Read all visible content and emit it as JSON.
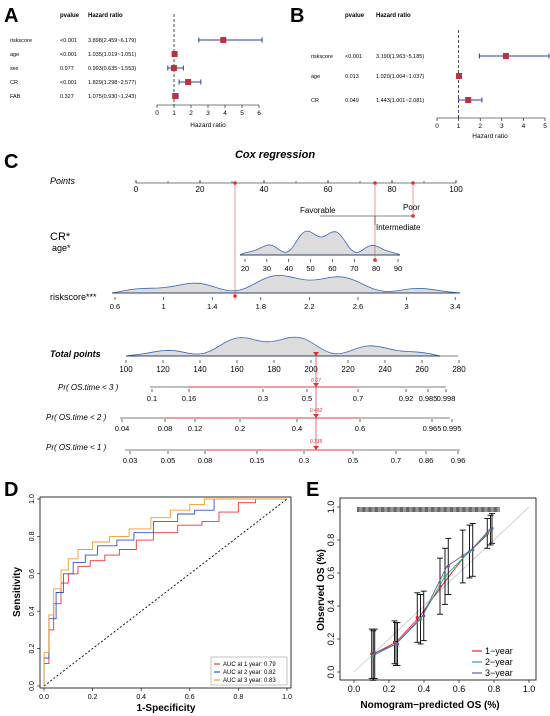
{
  "panels": {
    "A": {
      "letter": "A",
      "col_pvalue": "pvalue",
      "col_hr": "Hazard ratio",
      "xlabel": "Hazard ratio",
      "ticks": [
        0,
        1,
        2,
        3,
        4,
        5,
        6
      ],
      "rows": [
        {
          "name": "riskscore",
          "p": "<0.001",
          "hr_text": "3.898(2.459~6.179)",
          "hr": 3.898,
          "lo": 2.459,
          "hi": 6.179
        },
        {
          "name": "age",
          "p": "<0.001",
          "hr_text": "1.035(1.019~1.051)",
          "hr": 1.035,
          "lo": 1.019,
          "hi": 1.051
        },
        {
          "name": "sex",
          "p": "0.977",
          "hr_text": "0.993(0.635~1.553)",
          "hr": 0.993,
          "lo": 0.635,
          "hi": 1.553
        },
        {
          "name": "CR",
          "p": "<0.001",
          "hr_text": "1.829(1.298~2.577)",
          "hr": 1.829,
          "lo": 1.298,
          "hi": 2.577
        },
        {
          "name": "FAB",
          "p": "0.327",
          "hr_text": "1.075(0.930~1.243)",
          "hr": 1.075,
          "lo": 0.93,
          "hi": 1.243
        }
      ]
    },
    "B": {
      "letter": "B",
      "col_pvalue": "pvalue",
      "col_hr": "Hazard ratio",
      "xlabel": "Hazard ratio",
      "ticks": [
        0,
        1,
        2,
        3,
        4,
        5
      ],
      "rows": [
        {
          "name": "riskscore",
          "p": "<0.001",
          "hr_text": "3.190(1.963~5.185)",
          "hr": 3.19,
          "lo": 1.963,
          "hi": 5.185
        },
        {
          "name": "age",
          "p": "0.013",
          "hr_text": "1.020(1.004~1.037)",
          "hr": 1.02,
          "lo": 1.004,
          "hi": 1.037
        },
        {
          "name": "CR",
          "p": "0.049",
          "hr_text": "1.443(1.001~2.081)",
          "hr": 1.443,
          "lo": 1.001,
          "hi": 2.081
        }
      ]
    },
    "C": {
      "letter": "C",
      "title": "Cox regression",
      "points_label": "Points",
      "points_ticks": [
        0,
        20,
        40,
        60,
        80,
        100
      ],
      "cr_label": "CR*",
      "cr_levels": [
        "Favorable",
        "Poor",
        "Intermediate"
      ],
      "age_label": "age*",
      "age_ticks": [
        20,
        30,
        40,
        50,
        60,
        70,
        80,
        90
      ],
      "risk_label": "riskscore***",
      "risk_ticks": [
        "0.6",
        "1",
        "1.4",
        "1.8",
        "2.2",
        "2.6",
        "3",
        "3.4"
      ],
      "total_label": "Total points",
      "total_ticks": [
        100,
        120,
        140,
        160,
        180,
        200,
        220,
        240,
        260,
        280
      ],
      "total_value": "190",
      "pr3_label": "Pr( OS.time < 3 )",
      "pr3_ticks": [
        "0.1",
        "0.16",
        "0.3",
        "0.5",
        "0.7",
        "0.92",
        "0.985",
        "0.998"
      ],
      "pr3_value": "0.67",
      "pr2_label": "Pr( OS.time < 2 )",
      "pr2_ticks": [
        "0.04",
        "0.08",
        "0.12",
        "0.2",
        "0.4",
        "0.6",
        "0.965",
        "0.995"
      ],
      "pr2_value": "0.492",
      "pr1_label": "Pr( OS.time < 1 )",
      "pr1_ticks": [
        "0.03",
        "0.05",
        "0.08",
        "0.15",
        "0.3",
        "0.5",
        "0.7",
        "0.86",
        "0.96"
      ],
      "pr1_value": "0.335"
    },
    "D": {
      "letter": "D",
      "xlabel": "1-Specificity",
      "ylabel": "Sensitivity",
      "ticks": [
        "0.0",
        "0.2",
        "0.4",
        "0.6",
        "0.8",
        "1.0"
      ],
      "legend": [
        "AUC at 1 year: 0.79",
        "AUC at 2 year: 0.82",
        "AUC at 3 year: 0.83"
      ]
    },
    "E": {
      "letter": "E",
      "xlabel": "Nomogram−predicted OS (%)",
      "ylabel": "Observed OS (%)",
      "ticks": [
        "0.0",
        "0.2",
        "0.4",
        "0.6",
        "0.8",
        "1.0"
      ],
      "legend": [
        "1−year",
        "2−year",
        "3−year"
      ]
    }
  },
  "colors": {
    "forest_box": "#c0303a",
    "forest_ci": "#2b3fa0",
    "density_fill": "#dcdcdc",
    "density_line": "#3a66b8",
    "nomo_red": "#e03030",
    "roc_1y": "#e8363a",
    "roc_2y": "#3355cc",
    "roc_3y": "#f09a28",
    "cal_1y": "#e0202a",
    "cal_2y": "#2eaa78",
    "cal_3y": "#6b5aa8"
  },
  "chart_data": [
    {
      "type": "forest",
      "panel": "A",
      "categories": [
        "riskscore",
        "age",
        "sex",
        "CR",
        "FAB"
      ],
      "hazard_ratio": [
        3.898,
        1.035,
        0.993,
        1.829,
        1.075
      ],
      "ci_low": [
        2.459,
        1.019,
        0.635,
        1.298,
        0.93
      ],
      "ci_high": [
        6.179,
        1.051,
        1.553,
        2.577,
        1.243
      ],
      "pvalue": [
        "<0.001",
        "<0.001",
        "0.977",
        "<0.001",
        "0.327"
      ],
      "xlabel": "Hazard ratio",
      "xlim": [
        0,
        6
      ]
    },
    {
      "type": "forest",
      "panel": "B",
      "categories": [
        "riskscore",
        "age",
        "CR"
      ],
      "hazard_ratio": [
        3.19,
        1.02,
        1.443
      ],
      "ci_low": [
        1.963,
        1.004,
        1.001
      ],
      "ci_high": [
        5.185,
        1.037,
        2.081
      ],
      "pvalue": [
        "<0.001",
        "0.013",
        "0.049"
      ],
      "xlabel": "Hazard ratio",
      "xlim": [
        0,
        5
      ]
    },
    {
      "type": "nomogram",
      "panel": "C",
      "title": "Cox regression",
      "selected": {
        "CR_points": 74,
        "age": 77,
        "riskscore": 1.6,
        "total_points": 190,
        "pr3": 0.67,
        "pr2": 0.492,
        "pr1": 0.335
      }
    },
    {
      "type": "line",
      "panel": "D",
      "xlabel": "1-Specificity",
      "ylabel": "Sensitivity",
      "xlim": [
        0,
        1
      ],
      "ylim": [
        0,
        1
      ],
      "series": [
        {
          "name": "AUC at 1 year: 0.79",
          "x": [
            0,
            0,
            0.02,
            0.02,
            0.04,
            0.04,
            0.07,
            0.07,
            0.1,
            0.1,
            0.14,
            0.14,
            0.19,
            0.19,
            0.25,
            0.25,
            0.31,
            0.31,
            0.38,
            0.38,
            0.45,
            0.45,
            0.55,
            0.55,
            0.65,
            0.65,
            0.72,
            0.72,
            0.8,
            0.8,
            0.87,
            0.87,
            1
          ],
          "y": [
            0,
            0.12,
            0.12,
            0.3,
            0.3,
            0.44,
            0.44,
            0.55,
            0.55,
            0.6,
            0.6,
            0.64,
            0.64,
            0.67,
            0.67,
            0.7,
            0.7,
            0.73,
            0.73,
            0.78,
            0.78,
            0.82,
            0.82,
            0.86,
            0.86,
            0.88,
            0.88,
            0.93,
            0.93,
            0.98,
            0.98,
            1,
            1
          ]
        },
        {
          "name": "AUC at 2 year: 0.82",
          "x": [
            0,
            0,
            0.02,
            0.02,
            0.05,
            0.05,
            0.08,
            0.08,
            0.12,
            0.12,
            0.17,
            0.17,
            0.22,
            0.22,
            0.3,
            0.3,
            0.37,
            0.37,
            0.45,
            0.45,
            0.55,
            0.55,
            0.62,
            0.62,
            0.7,
            0.7,
            0.82,
            0.82,
            1
          ],
          "y": [
            0,
            0.15,
            0.15,
            0.36,
            0.36,
            0.5,
            0.5,
            0.6,
            0.6,
            0.66,
            0.66,
            0.7,
            0.7,
            0.75,
            0.75,
            0.78,
            0.78,
            0.82,
            0.82,
            0.88,
            0.88,
            0.92,
            0.92,
            0.94,
            0.94,
            1,
            1,
            1,
            1
          ]
        },
        {
          "name": "AUC at 3 year: 0.83",
          "x": [
            0,
            0,
            0.02,
            0.02,
            0.04,
            0.04,
            0.07,
            0.07,
            0.1,
            0.1,
            0.14,
            0.14,
            0.2,
            0.2,
            0.27,
            0.27,
            0.35,
            0.35,
            0.44,
            0.44,
            0.52,
            0.52,
            0.6,
            0.6,
            0.66,
            0.66,
            0.78,
            0.78,
            1
          ],
          "y": [
            0,
            0.18,
            0.18,
            0.38,
            0.38,
            0.52,
            0.52,
            0.62,
            0.62,
            0.68,
            0.68,
            0.73,
            0.73,
            0.77,
            0.77,
            0.8,
            0.8,
            0.84,
            0.84,
            0.9,
            0.9,
            0.94,
            0.94,
            0.97,
            0.97,
            1,
            1,
            1,
            1
          ]
        }
      ]
    },
    {
      "type": "line",
      "panel": "E",
      "xlabel": "Nomogram−predicted OS (%)",
      "ylabel": "Observed OS (%)",
      "xlim": [
        0,
        1
      ],
      "ylim": [
        0,
        1
      ],
      "series": [
        {
          "name": "1−year",
          "x": [
            0.11,
            0.24,
            0.37,
            0.5,
            0.63,
            0.77
          ],
          "y": [
            0.11,
            0.18,
            0.33,
            0.52,
            0.7,
            0.84
          ],
          "err": [
            0.15,
            0.13,
            0.15,
            0.17,
            0.16,
            0.09
          ]
        },
        {
          "name": "2−year",
          "x": [
            0.11,
            0.24,
            0.38,
            0.52,
            0.66,
            0.78
          ],
          "y": [
            0.1,
            0.17,
            0.32,
            0.58,
            0.73,
            0.86
          ],
          "err": [
            0.15,
            0.13,
            0.15,
            0.17,
            0.16,
            0.09
          ]
        },
        {
          "name": "3−year",
          "x": [
            0.11,
            0.24,
            0.39,
            0.53,
            0.67,
            0.78
          ],
          "y": [
            0.11,
            0.17,
            0.34,
            0.64,
            0.74,
            0.87
          ],
          "err": [
            0.15,
            0.13,
            0.15,
            0.17,
            0.16,
            0.09
          ]
        }
      ]
    }
  ]
}
